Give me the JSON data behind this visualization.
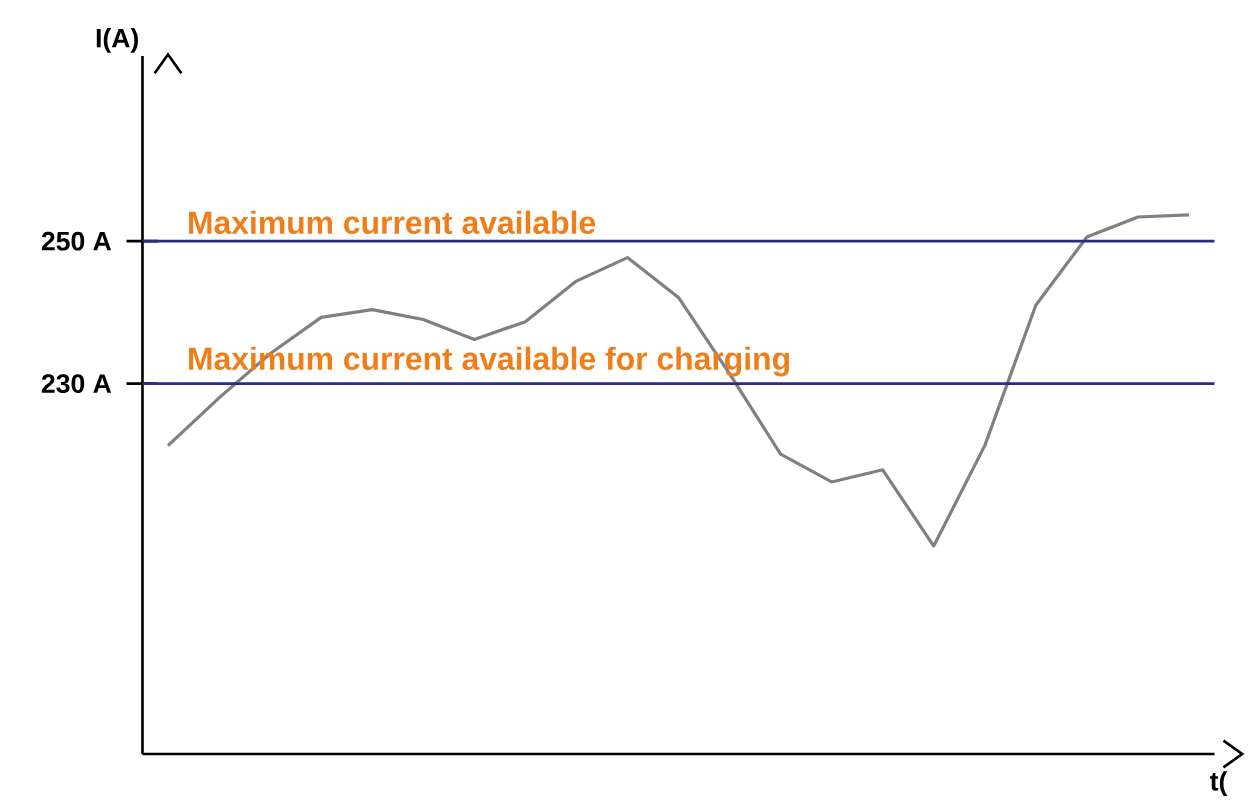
{
  "chart_data": {
    "type": "line",
    "xlabel": "t(",
    "ylabel": "I(A)",
    "categories": [
      null,
      null,
      null,
      null,
      null,
      null,
      null,
      null,
      null,
      null,
      null,
      null,
      null,
      null,
      null,
      null,
      null,
      null,
      null,
      null,
      null
    ],
    "series": [
      {
        "color": "#808080",
        "values": [
          221.3,
          228.0,
          234.2,
          239.3,
          240.4,
          239.0,
          236.2,
          238.7,
          244.4,
          247.7,
          242.1,
          231.4,
          220.1,
          216.2,
          217.9,
          207.2,
          221.3,
          241.0,
          250.6,
          253.4,
          253.7
        ]
      }
    ],
    "ylim": [
      178,
      276
    ],
    "yticks": [
      {
        "value": 230,
        "label": "230 A"
      },
      {
        "value": 250,
        "label": "250 A"
      }
    ],
    "tick_labels": "y",
    "ref_lines": [
      {
        "axis": "y",
        "value": 250,
        "label": "Maximum current available",
        "color": "#2b2b8c"
      },
      {
        "axis": "y",
        "value": 230,
        "label": "Maximum current available for charging",
        "color": "#2b2b8c"
      }
    ]
  }
}
